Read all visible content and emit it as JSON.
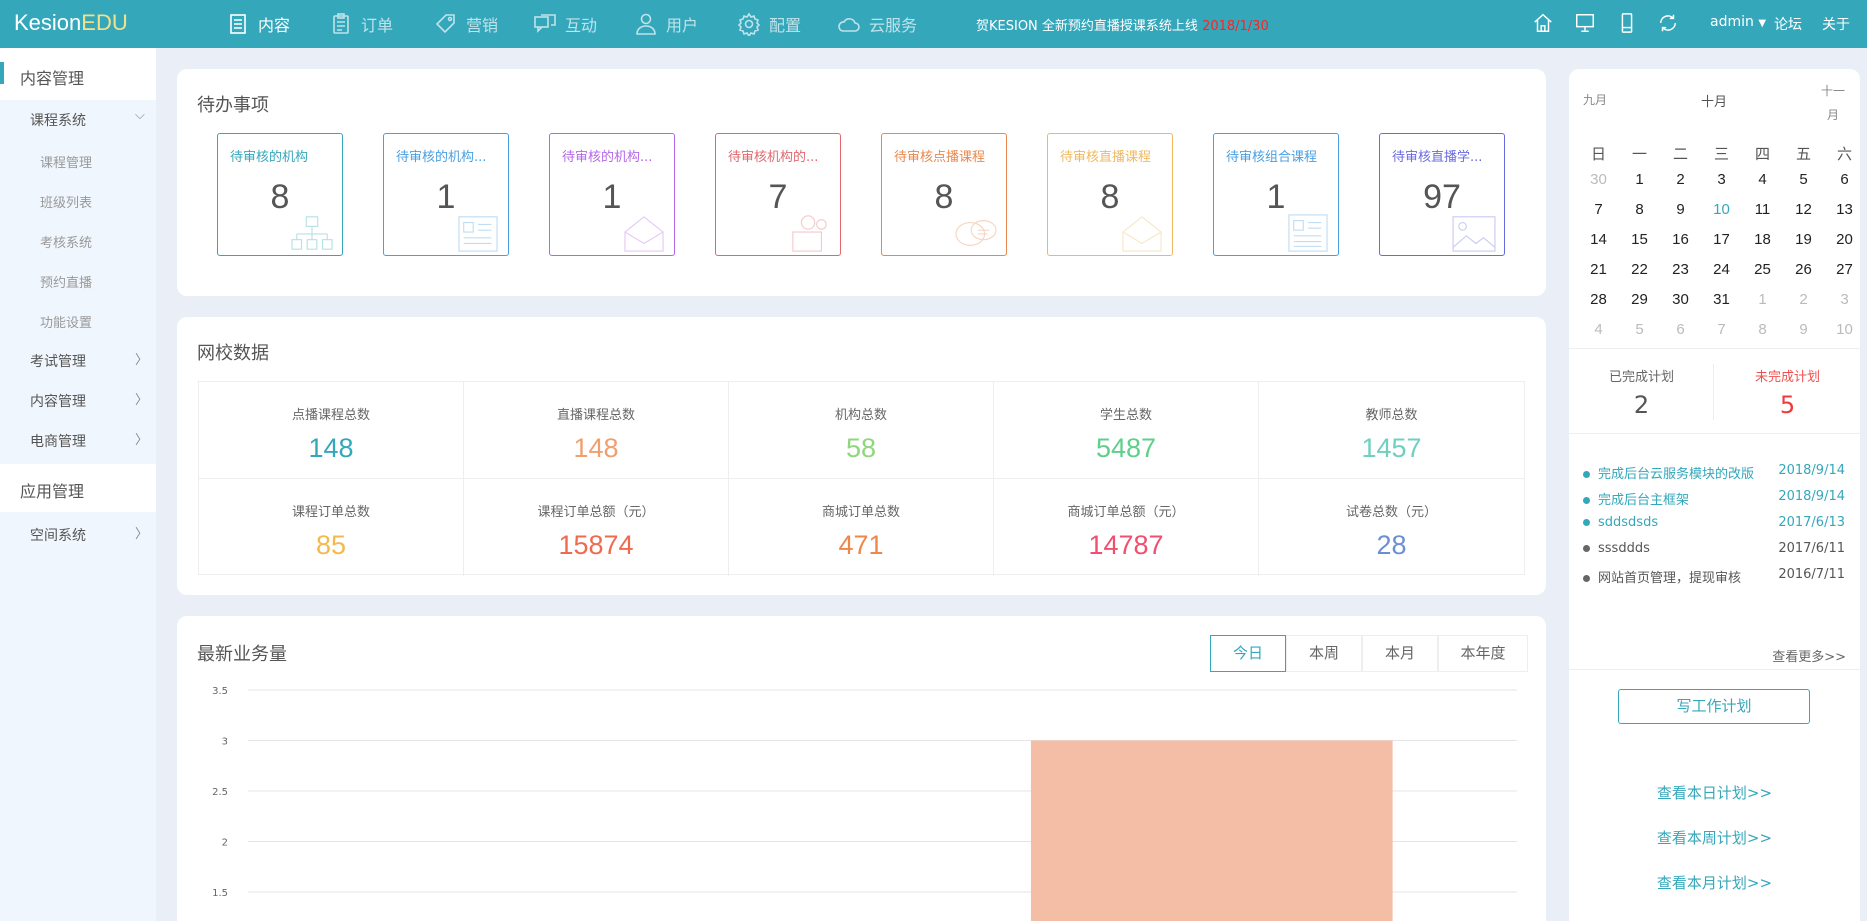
{
  "header": {
    "logo_a": "Kesion",
    "logo_b": "EDU",
    "nav": [
      {
        "label": "内容",
        "icon": "list-icon"
      },
      {
        "label": "订单",
        "icon": "clipboard-icon"
      },
      {
        "label": "营销",
        "icon": "tag-icon"
      },
      {
        "label": "互动",
        "icon": "chat-icon"
      },
      {
        "label": "用户",
        "icon": "user-icon"
      },
      {
        "label": "配置",
        "icon": "gear-icon"
      },
      {
        "label": "云服务",
        "icon": "cloud-icon"
      }
    ],
    "announcement": "贺KESION 全新预约直播授课系统上线",
    "announcement_date": "2018/1/30",
    "user": "admin",
    "forum": "论坛",
    "about": "关于"
  },
  "sidebar": {
    "section1": "内容管理",
    "group1": "课程系统",
    "sub": [
      "课程管理",
      "班级列表",
      "考核系统",
      "预约直播",
      "功能设置"
    ],
    "groups": [
      "考试管理",
      "内容管理",
      "电商管理"
    ],
    "section2": "应用管理",
    "group2": "空间系统"
  },
  "todo": {
    "title": "待办事项",
    "items": [
      {
        "label": "待审核的机构",
        "count": "8",
        "color": "#35a7bb"
      },
      {
        "label": "待审核的机构...",
        "count": "1",
        "color": "#4a9fe0"
      },
      {
        "label": "待审核的机构...",
        "count": "1",
        "color": "#b567e8"
      },
      {
        "label": "待审核机构的...",
        "count": "7",
        "color": "#e0686e"
      },
      {
        "label": "待审核点播课程",
        "count": "8",
        "color": "#e8884f"
      },
      {
        "label": "待审核直播课程",
        "count": "8",
        "color": "#f0b860"
      },
      {
        "label": "待审核组合课程",
        "count": "1",
        "color": "#4a9fe0"
      },
      {
        "label": "待审核直播学...",
        "count": "97",
        "color": "#6a6ae0"
      }
    ]
  },
  "stats": {
    "title": "网校数据",
    "items": [
      {
        "label": "点播课程总数",
        "value": "148",
        "color": "#35a7bb"
      },
      {
        "label": "直播课程总数",
        "value": "148",
        "color": "#f0a070"
      },
      {
        "label": "机构总数",
        "value": "58",
        "color": "#8fd67c"
      },
      {
        "label": "学生总数",
        "value": "5487",
        "color": "#5fcf8a"
      },
      {
        "label": "教师总数",
        "value": "1457",
        "color": "#6fd0c0"
      },
      {
        "label": "课程订单总数",
        "value": "85",
        "color": "#f5b94a"
      },
      {
        "label": "课程订单总额（元）",
        "value": "15874",
        "color": "#ef6b4f"
      },
      {
        "label": "商城订单总数",
        "value": "471",
        "color": "#f0874a"
      },
      {
        "label": "商城订单总额（元）",
        "value": "14787",
        "color": "#f0506e"
      },
      {
        "label": "试卷总数（元）",
        "value": "28",
        "color": "#6a8fd4"
      }
    ]
  },
  "business": {
    "title": "最新业务量",
    "ranges": [
      "今日",
      "本周",
      "本月",
      "本年度"
    ],
    "active_range": "今日"
  },
  "chart_data": {
    "type": "bar",
    "title": "",
    "xlabel": "",
    "ylabel": "",
    "ylim": [
      1.5,
      3.5
    ],
    "yticks": [
      "3.5",
      "3",
      "2.5",
      "2",
      "1.5"
    ],
    "grid": true,
    "values": [
      null,
      3
    ],
    "bar_color": "#f4bda6"
  },
  "calendar": {
    "prev": "九月",
    "current": "十月",
    "next": "十一月",
    "weekdays": [
      "日",
      "一",
      "二",
      "三",
      "四",
      "五",
      "六"
    ],
    "rows": [
      [
        "30",
        "1",
        "2",
        "3",
        "4",
        "5",
        "6"
      ],
      [
        "7",
        "8",
        "9",
        "10",
        "11",
        "12",
        "13"
      ],
      [
        "14",
        "15",
        "16",
        "17",
        "18",
        "19",
        "20"
      ],
      [
        "21",
        "22",
        "23",
        "24",
        "25",
        "26",
        "27"
      ],
      [
        "28",
        "29",
        "30",
        "31",
        "1",
        "2",
        "3"
      ],
      [
        "4",
        "5",
        "6",
        "7",
        "8",
        "9",
        "10"
      ]
    ],
    "today": "10"
  },
  "plans": {
    "done_label": "已完成计划",
    "done": "2",
    "undone_label": "未完成计划",
    "undone": "5",
    "items": [
      {
        "text": "完成后台云服务模块的改版",
        "date": "2018/9/14",
        "done": false
      },
      {
        "text": "完成后台主框架",
        "date": "2018/9/14",
        "done": false
      },
      {
        "text": "sddsdsds",
        "date": "2017/6/13",
        "done": false
      },
      {
        "text": "sssddds",
        "date": "2017/6/11",
        "done": true
      },
      {
        "text": "网站首页管理，提现审核",
        "date": "2016/7/11",
        "done": true
      }
    ],
    "more": "查看更多>>",
    "write": "写工作计划",
    "day": "查看本日计划>>",
    "week": "查看本周计划>>",
    "month": "查看本月计划>>"
  }
}
